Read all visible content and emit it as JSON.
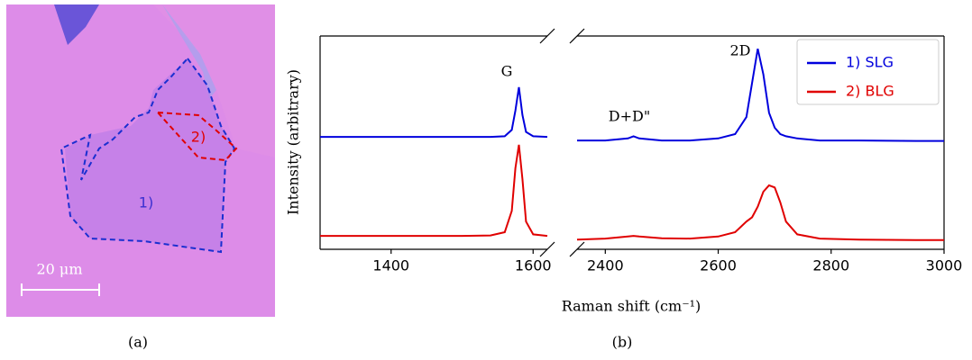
{
  "image_panel": {
    "scale_bar": "20 μm",
    "regions": [
      "1)",
      "2)"
    ],
    "caption": "(a)"
  },
  "chart_data": {
    "type": "line",
    "caption": "(b)",
    "xlabel": "Raman shift (cm⁻¹)",
    "ylabel": "Intensity (arbitrary)",
    "annotations": [
      "G",
      "D+D\"",
      "2D"
    ],
    "panels": [
      {
        "xlim": [
          1300,
          1620
        ],
        "xticks": [
          1400,
          1600
        ]
      },
      {
        "xlim": [
          2350,
          3000
        ],
        "xticks": [
          2400,
          2600,
          2800,
          3000
        ]
      }
    ],
    "ylim": [
      0,
      1
    ],
    "legend": "upper right",
    "x": [
      1300,
      1350,
      1400,
      1450,
      1500,
      1540,
      1560,
      1570,
      1575,
      1580,
      1585,
      1590,
      1600,
      1620,
      2350,
      2400,
      2440,
      2450,
      2460,
      2500,
      2550,
      2600,
      2630,
      2650,
      2660,
      2670,
      2680,
      2690,
      2700,
      2710,
      2720,
      2740,
      2780,
      2850,
      2950,
      3000
    ],
    "series": [
      {
        "name": "1) SLG",
        "color": "#0000dd",
        "values": [
          0.527,
          0.527,
          0.527,
          0.527,
          0.527,
          0.527,
          0.53,
          0.56,
          0.65,
          0.76,
          0.63,
          0.55,
          0.53,
          0.527,
          0.51,
          0.51,
          0.52,
          0.53,
          0.52,
          0.51,
          0.51,
          0.52,
          0.54,
          0.62,
          0.78,
          0.94,
          0.82,
          0.64,
          0.57,
          0.54,
          0.53,
          0.52,
          0.51,
          0.51,
          0.508,
          0.508
        ]
      },
      {
        "name": "2) BLG",
        "color": "#e00000",
        "values": [
          0.063,
          0.063,
          0.063,
          0.063,
          0.063,
          0.065,
          0.08,
          0.18,
          0.38,
          0.49,
          0.33,
          0.13,
          0.07,
          0.063,
          0.045,
          0.05,
          0.06,
          0.063,
          0.06,
          0.052,
          0.05,
          0.06,
          0.08,
          0.13,
          0.15,
          0.2,
          0.27,
          0.3,
          0.29,
          0.22,
          0.13,
          0.07,
          0.05,
          0.045,
          0.043,
          0.043
        ]
      }
    ]
  }
}
